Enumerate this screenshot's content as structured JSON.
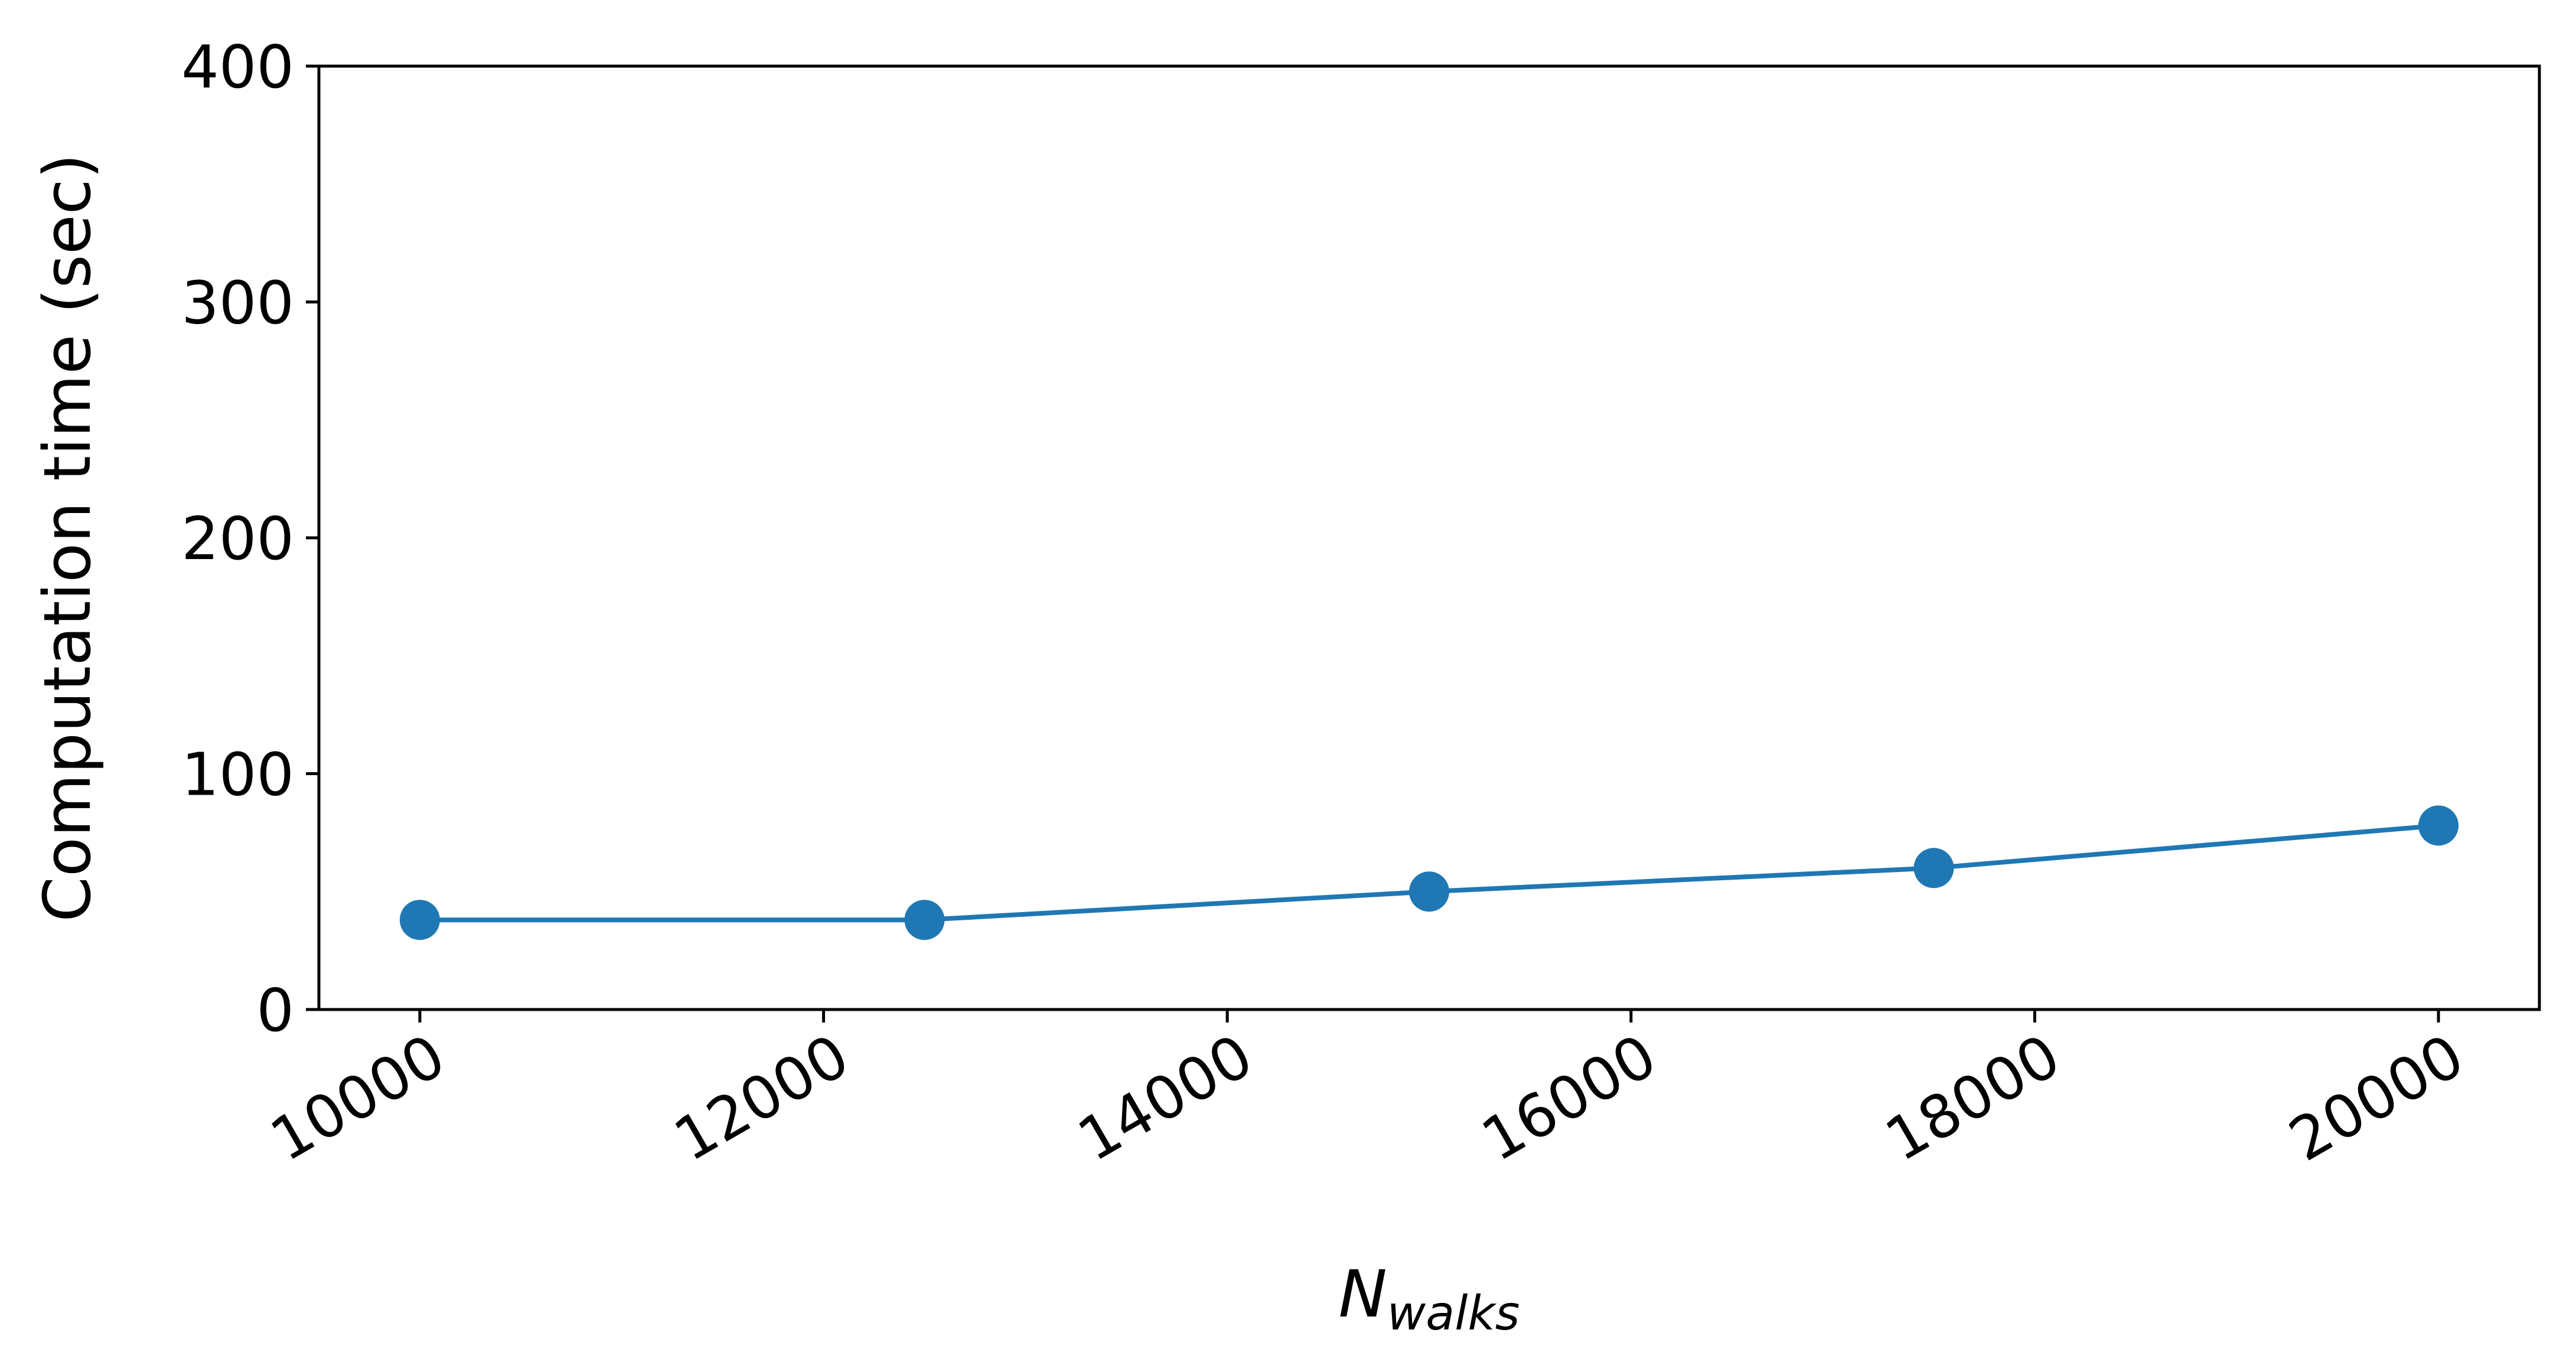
{
  "chart_data": {
    "type": "line",
    "title": "",
    "xlabel_main": "N",
    "xlabel_sub": "walks",
    "ylabel": "Computation time (sec)",
    "x": [
      10000,
      12500,
      15000,
      17500,
      20000
    ],
    "series": [
      {
        "values": [
          38,
          38,
          50,
          60,
          78
        ],
        "color": "#1f77b4"
      }
    ],
    "xticks": [
      "10000",
      "12000",
      "14000",
      "16000",
      "18000",
      "20000"
    ],
    "yticks": [
      "0",
      "100",
      "200",
      "300",
      "400"
    ],
    "xlim": [
      9500,
      20500
    ],
    "ylim": [
      0,
      400
    ],
    "grid": false,
    "legend": "none"
  }
}
